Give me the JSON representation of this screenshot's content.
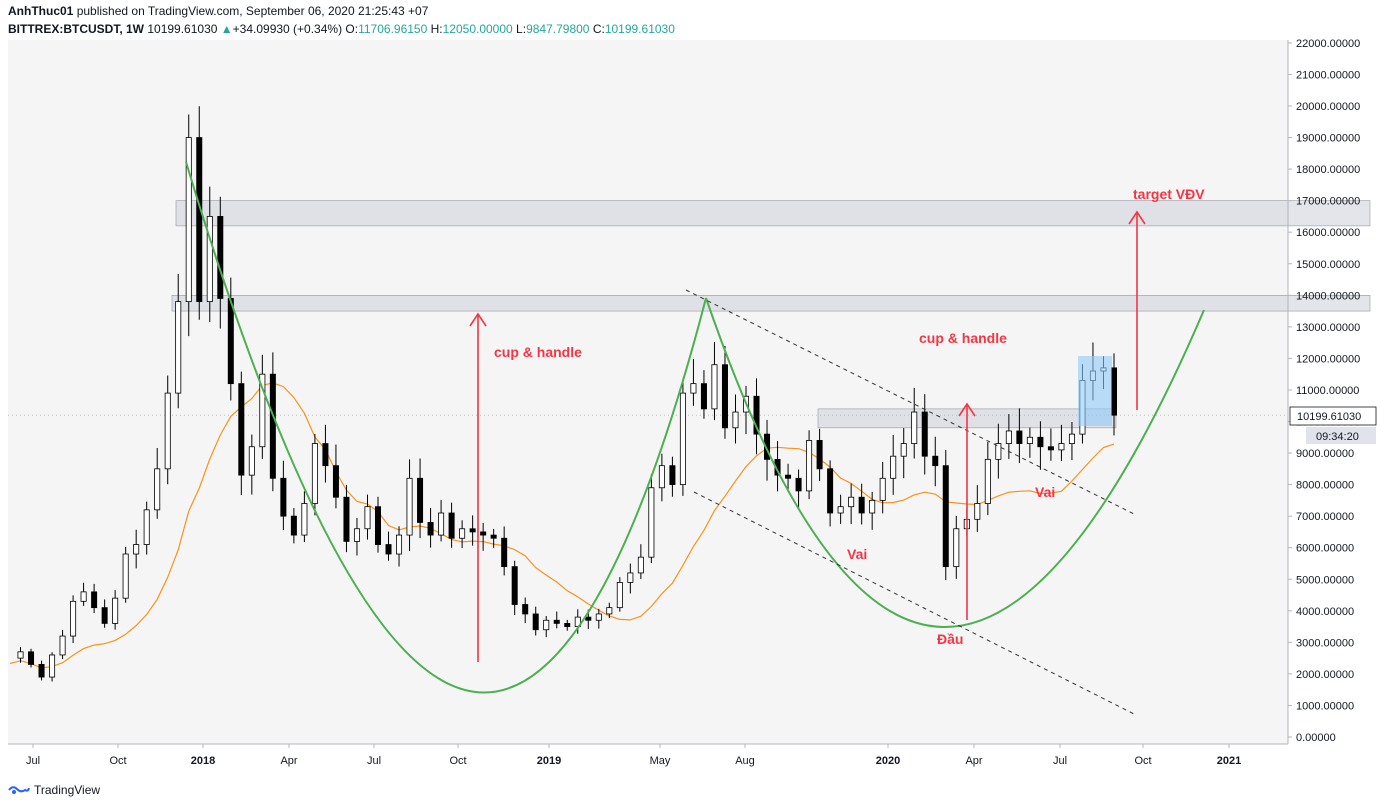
{
  "header": {
    "author": "AnhThuc01",
    "published_text": "published on TradingView.com, September 06, 2020 21:25:43 +07",
    "symbol": "BITTREX:BTCUSDT, 1W",
    "last": "10199.61030",
    "change": "+34.09930 (+0.34%)",
    "o_label": "O:",
    "o": "11706.96150",
    "h_label": "H:",
    "h": "12050.00000",
    "l_label": "L:",
    "l": "9847.79800",
    "c_label": "C:",
    "c": "10199.61030"
  },
  "footer": {
    "brand": "TradingView"
  },
  "price_badge": {
    "price": "10199.61030",
    "countdown": "09:34:20"
  },
  "annotations": {
    "cup1": "cup & handle",
    "cup2": "cup & handle",
    "target": "target VĐV",
    "vai_left": "Vai",
    "vai_right": "Vai",
    "dau": "Đầu"
  },
  "colors": {
    "candle_up": "#ffffff",
    "candle_down": "#000000",
    "ma": "#f7931a",
    "cup_curve": "#4caf50",
    "arrow": "#f23645",
    "zone": "#d1d4dc",
    "handle_box": "#90caf9",
    "annotation": "#f23645",
    "plot_bg": "#f5f5f5"
  },
  "chart_data": {
    "type": "candlestick",
    "symbol": "BITTREX:BTCUSDT",
    "interval": "1W",
    "ylim": [
      0,
      22000
    ],
    "y_ticks": [
      "22000.00000",
      "21000.00000",
      "20000.00000",
      "19000.00000",
      "18000.00000",
      "17000.00000",
      "16000.00000",
      "15000.00000",
      "14000.00000",
      "13000.00000",
      "12000.00000",
      "11000.00000",
      "10000.00000",
      "9000.00000",
      "8000.00000",
      "7000.00000",
      "6000.00000",
      "5000.00000",
      "4000.00000",
      "3000.00000",
      "2000.00000",
      "1000.00000",
      "0.00000"
    ],
    "x_ticks": [
      "Jul",
      "Oct",
      "2018",
      "Apr",
      "Jul",
      "Oct",
      "2019",
      "May",
      "Aug",
      "2020",
      "Apr",
      "Jul",
      "Oct",
      "2021"
    ],
    "path": [
      2500,
      2700,
      2300,
      1900,
      2600,
      3200,
      4300,
      4600,
      4100,
      3600,
      4400,
      5800,
      6100,
      7200,
      8500,
      10900,
      13800,
      19000,
      13800,
      16500,
      13900,
      11200,
      8300,
      9200,
      11500,
      8200,
      7000,
      6400,
      7400,
      9300,
      8600,
      7600,
      6200,
      6600,
      7300,
      6100,
      5800,
      6400,
      8200,
      6800,
      6400,
      7100,
      6300,
      6600,
      6500,
      6400,
      6300,
      5400,
      4200,
      3900,
      3400,
      3700,
      3600,
      3500,
      3800,
      3700,
      3900,
      4100,
      4900,
      5200,
      5700,
      7900,
      8600,
      8000,
      10900,
      11200,
      10400,
      11800,
      9800,
      10300,
      10800,
      9600,
      8800,
      8300,
      8200,
      7800,
      9400,
      8500,
      7100,
      7300,
      7600,
      7100,
      7500,
      8200,
      8900,
      9300,
      10300,
      8900,
      8600,
      5400,
      6600,
      6900,
      7400,
      8800,
      9300,
      9700,
      9300,
      9500,
      9200,
      9100,
      9300,
      9600,
      11300,
      11600,
      11700,
      10200
    ],
    "pivots": {
      "high_2017": 19800,
      "low_2018": 3200,
      "high_2019": 13900,
      "low_2020": 3800
    },
    "moving_average": {
      "note": "~20-period MA overlay"
    },
    "zones": [
      [
        16200,
        17000
      ],
      [
        13500,
        14000
      ],
      [
        9800,
        10400
      ]
    ],
    "last_price": 10199.6103
  }
}
